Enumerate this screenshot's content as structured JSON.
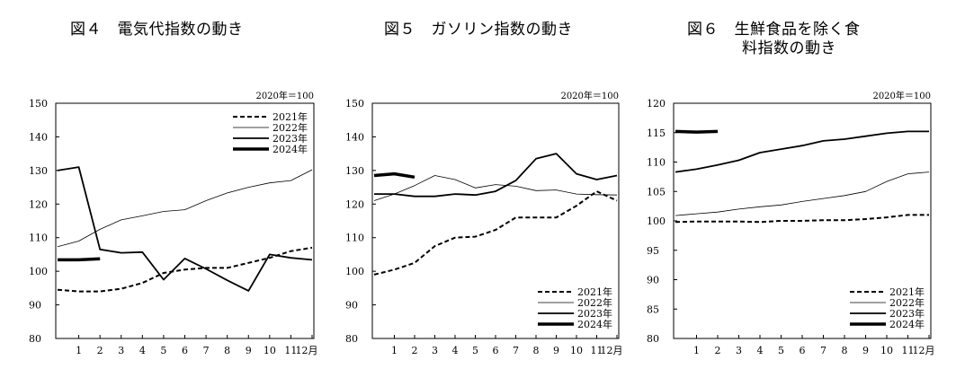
{
  "chart_data": [
    {
      "type": "line",
      "title": "図４　電気代指数の動き",
      "unit_note": "2020年＝100",
      "ylim": [
        80,
        150
      ],
      "yticks": [
        80,
        90,
        100,
        110,
        120,
        130,
        140,
        150
      ],
      "x_labels": [
        "1",
        "2",
        "3",
        "4",
        "5",
        "6",
        "7",
        "8",
        "9",
        "10",
        "11",
        "12月"
      ],
      "series": [
        {
          "name": "2021年",
          "style": "dashed",
          "values": [
            94.5,
            94,
            94,
            94.8,
            96.5,
            99.5,
            100.5,
            101,
            101,
            102.5,
            104,
            106,
            107
          ]
        },
        {
          "name": "2022年",
          "style": "thin",
          "values": [
            107.3,
            109,
            112.5,
            115.3,
            116.5,
            117.8,
            118.3,
            121,
            123.3,
            125,
            126.3,
            127,
            130.2
          ]
        },
        {
          "name": "2023年",
          "style": "normal",
          "values": [
            130,
            131,
            106.5,
            105.5,
            105.7,
            97.5,
            103.8,
            100.7,
            97.3,
            94.2,
            105,
            104,
            103.4
          ]
        },
        {
          "name": "2024年",
          "style": "thick",
          "values": [
            103.4,
            103.4,
            103.7
          ]
        }
      ]
    },
    {
      "type": "line",
      "title": "図５　ガソリン指数の動き",
      "unit_note": "2020年＝100",
      "ylim": [
        80,
        150
      ],
      "yticks": [
        80,
        90,
        100,
        110,
        120,
        130,
        140,
        150
      ],
      "x_labels": [
        "1",
        "2",
        "3",
        "4",
        "5",
        "6",
        "7",
        "8",
        "9",
        "10",
        "11",
        "12月"
      ],
      "series": [
        {
          "name": "2021年",
          "style": "dashed",
          "values": [
            99,
            100.5,
            102.5,
            107.5,
            110,
            110.3,
            112.3,
            116,
            116,
            116,
            119.5,
            123.8,
            121
          ]
        },
        {
          "name": "2022年",
          "style": "thin",
          "values": [
            121,
            123,
            125.5,
            128.5,
            127.3,
            124.8,
            125.8,
            125.3,
            124,
            124.2,
            123,
            122.8,
            122.7
          ]
        },
        {
          "name": "2023年",
          "style": "normal",
          "values": [
            123,
            123,
            122.3,
            122.3,
            123,
            122.7,
            123.8,
            127,
            133.5,
            135,
            129,
            127.3,
            128.5
          ]
        },
        {
          "name": "2024年",
          "style": "thick",
          "values": [
            128.5,
            129,
            128
          ]
        }
      ]
    },
    {
      "type": "line",
      "title": "図６　生鮮食品を除く食料指数の動き",
      "unit_note": "2020年＝100",
      "ylim": [
        80,
        120
      ],
      "yticks": [
        80,
        85,
        90,
        95,
        100,
        105,
        110,
        115,
        120
      ],
      "x_labels": [
        "1",
        "2",
        "3",
        "4",
        "5",
        "6",
        "7",
        "8",
        "9",
        "10",
        "11",
        "12月"
      ],
      "series": [
        {
          "name": "2021年",
          "style": "dashed",
          "values": [
            99.8,
            99.9,
            99.9,
            99.9,
            99.8,
            100,
            100,
            100.1,
            100.1,
            100.3,
            100.6,
            101,
            101
          ]
        },
        {
          "name": "2022年",
          "style": "thin",
          "values": [
            100.9,
            101.2,
            101.5,
            102,
            102.4,
            102.7,
            103.3,
            103.8,
            104.3,
            105,
            106.7,
            108,
            108.3
          ]
        },
        {
          "name": "2023年",
          "style": "normal",
          "values": [
            108.3,
            108.8,
            109.5,
            110.3,
            111.6,
            112.2,
            112.8,
            113.6,
            113.9,
            114.4,
            114.9,
            115.2,
            115.2
          ]
        },
        {
          "name": "2024年",
          "style": "thick",
          "values": [
            115.2,
            115.1,
            115.2
          ]
        }
      ]
    }
  ]
}
